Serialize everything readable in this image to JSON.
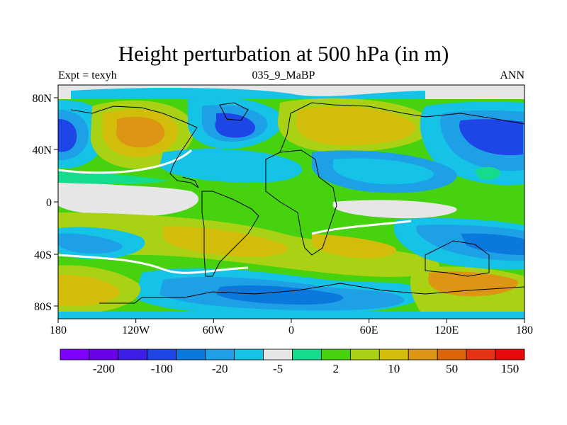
{
  "header": {
    "title": "Height perturbation at 500 hPa (in m)",
    "left": "Expt = texyh",
    "center": "035_9_MaBP",
    "right": "ANN"
  },
  "axes": {
    "x_ticks": [
      "180",
      "120W",
      "60W",
      "0",
      "60E",
      "120E",
      "180"
    ],
    "y_ticks": [
      "80N",
      "40N",
      "0",
      "40S",
      "80S"
    ]
  },
  "colorbar": {
    "colors": [
      "#7f00ff",
      "#6a00e6",
      "#3c1ee6",
      "#1e46e6",
      "#0a78dc",
      "#1ea0e6",
      "#14c3e6",
      "#e6e6e6",
      "#14dc8c",
      "#46d20f",
      "#aad214",
      "#d2be0a",
      "#dc9614",
      "#dc640a",
      "#e63214",
      "#e60a0a"
    ],
    "labels": [
      "-200",
      "-100",
      "-20",
      "-5",
      "2",
      "10",
      "50",
      "150"
    ]
  },
  "map": {
    "background_color": "#e6e6e6",
    "features": [
      "continent outlines in black",
      "positive anomaly bands over subtropics",
      "negative anomaly bands at mid-latitudes"
    ]
  }
}
